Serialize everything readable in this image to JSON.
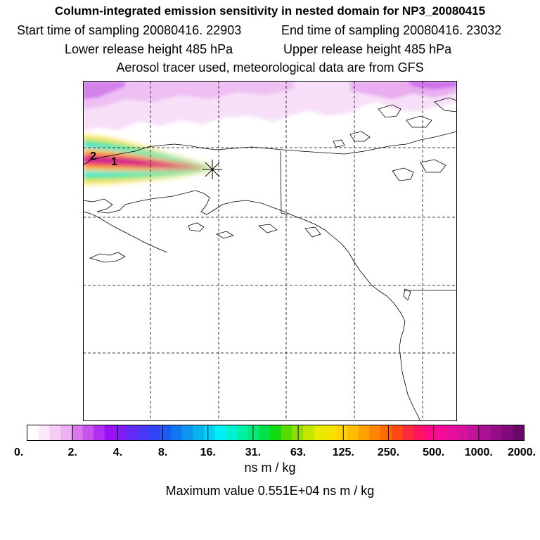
{
  "header": {
    "title": "Column-integrated emission sensitivity in nested domain for NP3_20080415",
    "start_time": "Start time of sampling 20080416. 22903",
    "end_time": "End time of sampling 20080416. 23032",
    "lower_release": "Lower release height  485 hPa",
    "upper_release": "Upper release height  485 hPa",
    "tracer_note": "Aerosol tracer used, meteorological data are from GFS"
  },
  "map": {
    "labels": [
      "2",
      "1"
    ],
    "colors": {
      "coast": "#000000",
      "grid": "#000000",
      "frame": "#000000"
    }
  },
  "colorbar": {
    "tick_labels": [
      "0.",
      "2.",
      "4.",
      "8.",
      "16.",
      "31.",
      "63.",
      "125.",
      "250.",
      "500.",
      "1000.",
      "2000."
    ],
    "colors": [
      "#ffffff",
      "#fbe8fb",
      "#f4ccf4",
      "#ebb0f0",
      "#d77ae8",
      "#c653ec",
      "#b02ff2",
      "#9a10f7",
      "#7e1ef5",
      "#6429f5",
      "#4a38f5",
      "#2f45f5",
      "#1c5cf3",
      "#0f78f0",
      "#0c95ee",
      "#06b3ef",
      "#00d2f5",
      "#00f0f5",
      "#00f2d0",
      "#00f0a6",
      "#00ec78",
      "#00e24a",
      "#12da10",
      "#56dc00",
      "#93e000",
      "#c4e600",
      "#e8ea00",
      "#f8e300",
      "#ffd300",
      "#ffbd00",
      "#ffa100",
      "#ff8400",
      "#ff6a00",
      "#ff4a14",
      "#ff2a3a",
      "#ff1460",
      "#ff0a86",
      "#f80a98",
      "#e80e9e",
      "#d4129e",
      "#c0129a",
      "#aa1092",
      "#950d88",
      "#800a7b",
      "#6a0768"
    ]
  },
  "units": "ns m / kg",
  "max_value": "Maximum value  0.551E+04 ns m / kg"
}
